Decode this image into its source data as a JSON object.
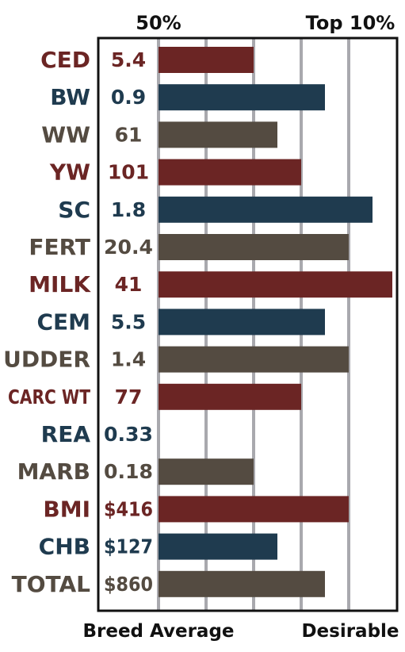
{
  "colors": {
    "red": "#6b2524",
    "blue": "#1f3b4f",
    "brown": "#544b41",
    "grid": "#a9a9ae",
    "frame": "#111111",
    "text_dark": "#111111"
  },
  "chart_data": {
    "type": "bar",
    "orientation": "horizontal",
    "top_labels": [
      "50%",
      "Top 10%"
    ],
    "bottom_labels": [
      "Breed Average",
      "Desirable"
    ],
    "categories": [
      "CED",
      "BW",
      "WW",
      "YW",
      "SC",
      "FERT",
      "MILK",
      "CEM",
      "UDDER",
      "CARC WT",
      "REA",
      "MARB",
      "BMI",
      "CHB",
      "TOTAL"
    ],
    "value_labels": [
      "5.4",
      "0.9",
      "61",
      "101",
      "1.8",
      "20.4",
      "41",
      "5.5",
      "1.4",
      "77",
      "0.33",
      "0.18",
      "$416",
      "$127",
      "$860"
    ],
    "bar_levels": [
      2,
      3.5,
      2.5,
      3,
      4.5,
      4,
      5,
      3.5,
      4,
      3,
      0,
      2,
      4,
      2.5,
      3.5
    ],
    "bar_colors": [
      "red",
      "blue",
      "brown",
      "red",
      "blue",
      "brown",
      "red",
      "blue",
      "brown",
      "red",
      "blue",
      "brown",
      "red",
      "blue",
      "brown"
    ],
    "xlim": [
      0,
      5
    ],
    "grid": true,
    "grid_ticks": [
      1,
      2,
      3,
      4
    ]
  }
}
